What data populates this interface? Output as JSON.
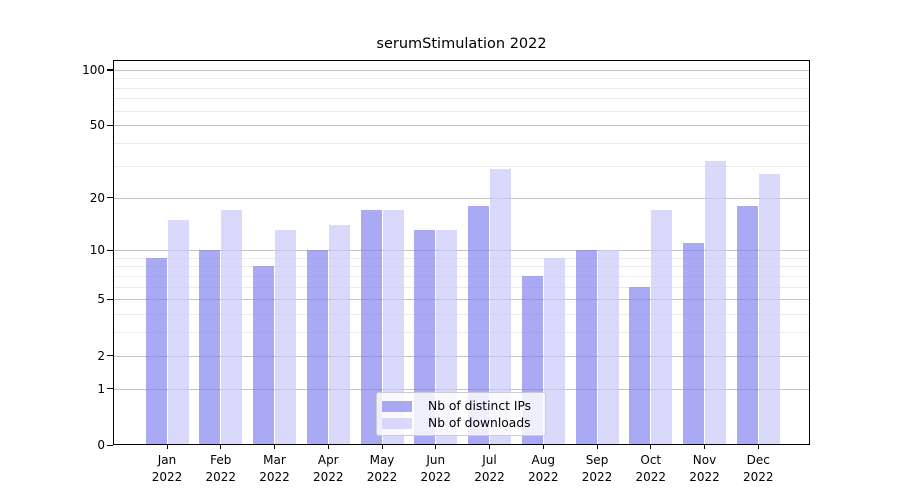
{
  "chart_data": {
    "type": "bar",
    "title": "serumStimulation 2022",
    "categories": [
      "Jan",
      "Feb",
      "Mar",
      "Apr",
      "May",
      "Jun",
      "Jul",
      "Aug",
      "Sep",
      "Oct",
      "Nov",
      "Dec"
    ],
    "x_year": "2022",
    "series": [
      {
        "name": "Nb of distinct IPs",
        "color": "rgba(132,132,240,0.7)",
        "values": [
          9,
          10,
          8,
          10,
          17,
          13,
          18,
          7,
          10,
          6,
          11,
          18
        ]
      },
      {
        "name": "Nb of downloads",
        "color": "rgba(201,201,250,0.7)",
        "values": [
          15,
          17,
          13,
          14,
          17,
          13,
          29,
          9,
          10,
          17,
          32,
          27
        ]
      }
    ],
    "yscale": "log1p",
    "ylim": [
      0,
      113
    ],
    "yticks": [
      0,
      1,
      2,
      5,
      10,
      20,
      50,
      100
    ],
    "yticks_minor": [
      3,
      4,
      6,
      7,
      8,
      9,
      30,
      40,
      60,
      70,
      80,
      90
    ],
    "grid": true,
    "legend_position": "lower center",
    "colors": {
      "major_grid": "#c2c2c2",
      "minor_grid": "#ebebeb",
      "spine": "#000000",
      "text": "#000000"
    }
  }
}
